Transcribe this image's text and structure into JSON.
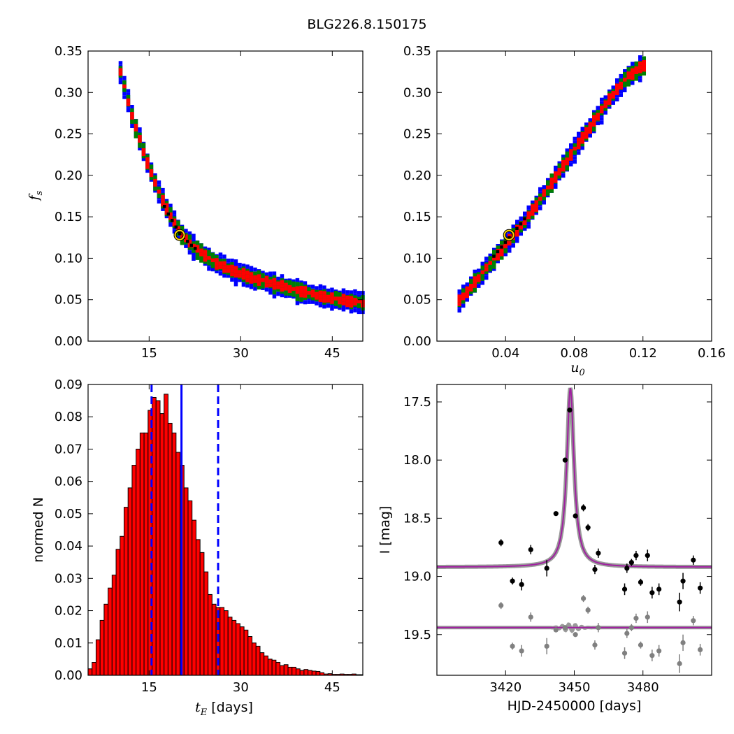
{
  "figure": {
    "title": "BLG226.8.150175"
  },
  "colors": {
    "sigma3": "#0000ff",
    "sigma2": "#008000",
    "sigma1": "#ff0000",
    "best_bin": "#000000",
    "best_marker": "#ffd700",
    "hist_bar": "#ff0000",
    "hist_lines": "#0000ff",
    "model_curve": "#a020a0",
    "data_primary": "#000000",
    "data_secondary": "#808080"
  },
  "chart_data": [
    {
      "type": "heatmap",
      "panel": "top-left",
      "xlabel": "",
      "ylabel": "f_s",
      "xlim": [
        5,
        50
      ],
      "ylim": [
        0.0,
        0.35
      ],
      "xticks": [
        "15",
        "30",
        "45"
      ],
      "yticks": [
        "0.00",
        "0.05",
        "0.10",
        "0.15",
        "0.20",
        "0.25",
        "0.30",
        "0.35"
      ],
      "levels": [
        "1-sigma (red)",
        "2-sigma (green)",
        "3-sigma (blue)"
      ],
      "ridge": [
        [
          10,
          0.325
        ],
        [
          12,
          0.27
        ],
        [
          14,
          0.225
        ],
        [
          16,
          0.185
        ],
        [
          18,
          0.155
        ],
        [
          20,
          0.13
        ],
        [
          22,
          0.115
        ],
        [
          25,
          0.098
        ],
        [
          28,
          0.087
        ],
        [
          32,
          0.077
        ],
        [
          36,
          0.068
        ],
        [
          40,
          0.06
        ],
        [
          45,
          0.052
        ],
        [
          50,
          0.047
        ]
      ],
      "best_fit": {
        "x": 20.0,
        "y": 0.128
      }
    },
    {
      "type": "heatmap",
      "panel": "top-right",
      "xlabel": "u_0",
      "ylabel": "",
      "xlim": [
        0.0,
        0.16
      ],
      "ylim": [
        0.0,
        0.35
      ],
      "xticks": [
        "0.04",
        "0.08",
        "0.12",
        "0.16"
      ],
      "yticks": [
        "0.00",
        "0.05",
        "0.10",
        "0.15",
        "0.20",
        "0.25",
        "0.30",
        "0.35"
      ],
      "levels": [
        "1-sigma (red)",
        "2-sigma (green)",
        "3-sigma (blue)"
      ],
      "ridge": [
        [
          0.012,
          0.05
        ],
        [
          0.02,
          0.07
        ],
        [
          0.03,
          0.095
        ],
        [
          0.04,
          0.12
        ],
        [
          0.05,
          0.145
        ],
        [
          0.06,
          0.175
        ],
        [
          0.07,
          0.205
        ],
        [
          0.08,
          0.235
        ],
        [
          0.09,
          0.265
        ],
        [
          0.1,
          0.295
        ],
        [
          0.11,
          0.32
        ],
        [
          0.12,
          0.335
        ]
      ],
      "best_fit": {
        "x": 0.042,
        "y": 0.128
      }
    },
    {
      "type": "bar",
      "panel": "bottom-left",
      "xlabel": "t_E  [days]",
      "ylabel": "normed N",
      "xlim": [
        5,
        50
      ],
      "ylim": [
        0.0,
        0.09
      ],
      "xticks": [
        "15",
        "30",
        "45"
      ],
      "yticks": [
        "0.00",
        "0.01",
        "0.02",
        "0.03",
        "0.04",
        "0.05",
        "0.06",
        "0.07",
        "0.08",
        "0.09"
      ],
      "bin_start": 5.0,
      "bin_width": 0.655,
      "values": [
        0.002,
        0.004,
        0.011,
        0.017,
        0.022,
        0.027,
        0.031,
        0.039,
        0.043,
        0.052,
        0.058,
        0.065,
        0.07,
        0.075,
        0.075,
        0.082,
        0.086,
        0.085,
        0.081,
        0.087,
        0.078,
        0.075,
        0.069,
        0.065,
        0.058,
        0.054,
        0.048,
        0.042,
        0.038,
        0.032,
        0.025,
        0.022,
        0.021,
        0.021,
        0.02,
        0.018,
        0.017,
        0.016,
        0.015,
        0.014,
        0.012,
        0.01,
        0.009,
        0.007,
        0.006,
        0.005,
        0.0047,
        0.004,
        0.003,
        0.0033,
        0.0025,
        0.0025,
        0.002,
        0.0015,
        0.0018,
        0.0015,
        0.0013,
        0.0012,
        0.0008,
        0.0004,
        0.0005,
        0.0003,
        0.0003,
        0.0004,
        0.0003,
        0.0003,
        0.0004,
        0.0002,
        0.0002
      ],
      "median_line": 20.3,
      "interval_lines": [
        15.4,
        26.3
      ]
    },
    {
      "type": "scatter",
      "panel": "bottom-right",
      "xlabel": "HJD-2450000 [days]",
      "ylabel": "I [mag]",
      "xlim": [
        3390,
        3510
      ],
      "ylim": [
        19.85,
        17.35
      ],
      "xticks": [
        "3420",
        "3450",
        "3480"
      ],
      "yticks": [
        "17.5",
        "18.0",
        "18.5",
        "19.0",
        "19.5"
      ],
      "model": {
        "baseline": 18.92,
        "peak": 17.38,
        "t0": 3448.3
      },
      "residual_model": {
        "baseline": 19.44
      },
      "series": [
        {
          "points": [
            [
              3418,
              18.71,
              0.03
            ],
            [
              3423,
              19.04,
              0.03
            ],
            [
              3427,
              19.07,
              0.05
            ],
            [
              3431,
              18.77,
              0.04
            ],
            [
              3438,
              18.93,
              0.07
            ],
            [
              3442,
              18.46,
              0.02
            ],
            [
              3446,
              18.0,
              0.02
            ],
            [
              3448,
              17.57,
              0.02
            ],
            [
              3450.5,
              18.48,
              0.02
            ],
            [
              3454,
              18.41,
              0.03
            ],
            [
              3456,
              18.58,
              0.03
            ],
            [
              3459,
              18.94,
              0.04
            ],
            [
              3460.5,
              18.8,
              0.04
            ],
            [
              3472,
              19.11,
              0.05
            ],
            [
              3473,
              18.93,
              0.04
            ],
            [
              3475,
              18.88,
              0.03
            ],
            [
              3477,
              18.82,
              0.04
            ],
            [
              3479,
              19.05,
              0.03
            ],
            [
              3482,
              18.82,
              0.05
            ],
            [
              3484,
              19.14,
              0.05
            ],
            [
              3487,
              19.11,
              0.05
            ],
            [
              3496,
              19.22,
              0.08
            ],
            [
              3497.5,
              19.04,
              0.07
            ],
            [
              3502,
              18.86,
              0.04
            ],
            [
              3505,
              19.1,
              0.05
            ]
          ]
        },
        {
          "points": [
            [
              3418,
              19.25,
              0.03
            ],
            [
              3423,
              19.6,
              0.03
            ],
            [
              3427,
              19.64,
              0.05
            ],
            [
              3431,
              19.35,
              0.04
            ],
            [
              3438,
              19.6,
              0.07
            ],
            [
              3442,
              19.46,
              0.02
            ],
            [
              3446,
              19.44,
              0.02
            ],
            [
              3450.5,
              19.5,
              0.02
            ],
            [
              3454,
              19.19,
              0.03
            ],
            [
              3456,
              19.29,
              0.03
            ],
            [
              3459,
              19.59,
              0.04
            ],
            [
              3460.5,
              19.44,
              0.04
            ],
            [
              3472,
              19.66,
              0.05
            ],
            [
              3473,
              19.49,
              0.04
            ],
            [
              3475,
              19.44,
              0.03
            ],
            [
              3477,
              19.36,
              0.04
            ],
            [
              3479,
              19.59,
              0.03
            ],
            [
              3482,
              19.35,
              0.05
            ],
            [
              3484,
              19.68,
              0.05
            ],
            [
              3487,
              19.64,
              0.05
            ],
            [
              3496,
              19.75,
              0.08
            ],
            [
              3497.5,
              19.57,
              0.07
            ],
            [
              3502,
              19.38,
              0.04
            ],
            [
              3505,
              19.63,
              0.05
            ]
          ]
        }
      ]
    }
  ]
}
